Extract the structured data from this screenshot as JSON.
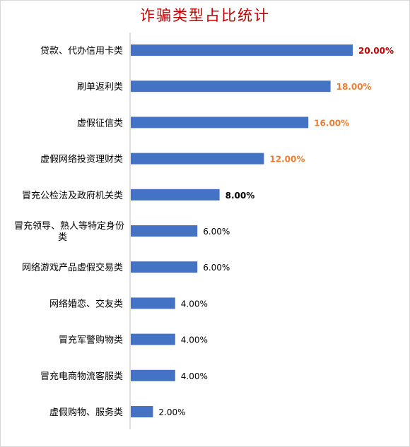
{
  "chart_data": {
    "type": "bar",
    "orientation": "horizontal",
    "title": "诈骗类型占比统计",
    "categories": [
      "贷款、代办信用卡类",
      "刷单返利类",
      "虚假征信类",
      "虚假网络投资理财类",
      "冒充公检法及政府机关类",
      "冒充领导、熟人等特定身份类",
      "网络游戏产品虚假交易类",
      "网络婚恋、交友类",
      "冒充军警购物类",
      "冒充电商物流客服类",
      "虚假购物、服务类"
    ],
    "values": [
      20,
      18,
      16,
      12,
      8,
      6,
      6,
      4,
      4,
      4,
      2
    ],
    "data_labels": [
      "20.00%",
      "18.00%",
      "16.00%",
      "12.00%",
      "8.00%",
      "6.00%",
      "6.00%",
      "4.00%",
      "4.00%",
      "4.00%",
      "2.00%"
    ],
    "xlim": [
      0,
      20
    ],
    "grid": false,
    "bar_color": "#4472c4",
    "label_colors": [
      "#c00000",
      "#ed7d31",
      "#ed7d31",
      "#ed7d31",
      "#000000",
      "#000000",
      "#000000",
      "#000000",
      "#000000",
      "#000000",
      "#000000"
    ],
    "label_bold": [
      true,
      true,
      true,
      true,
      true,
      false,
      false,
      false,
      false,
      false,
      false
    ]
  }
}
